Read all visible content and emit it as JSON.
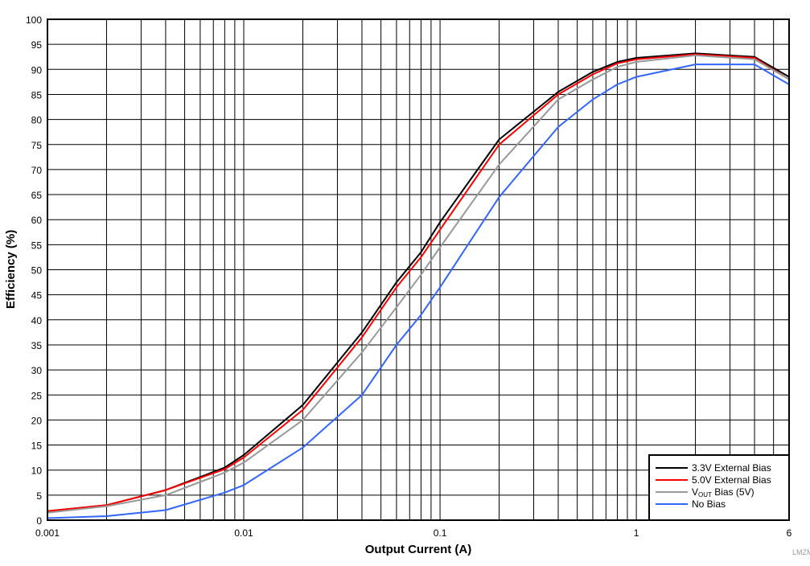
{
  "chart_data": {
    "type": "line",
    "title": "",
    "xlabel": "Output Current (A)",
    "ylabel": "Efficiency (%)",
    "xscale": "log",
    "xlim": [
      0.001,
      6
    ],
    "ylim": [
      0,
      100
    ],
    "grid": true,
    "legend_position": "bottom-right",
    "x_ticks": [
      {
        "value": 0.001,
        "label": "0.001"
      },
      {
        "value": 0.01,
        "label": "0.01"
      },
      {
        "value": 0.1,
        "label": "0.1"
      },
      {
        "value": 1,
        "label": "1"
      },
      {
        "value": 6,
        "label": "6"
      }
    ],
    "y_ticks": [
      0,
      5,
      10,
      15,
      20,
      25,
      30,
      35,
      40,
      45,
      50,
      55,
      60,
      65,
      70,
      75,
      80,
      85,
      90,
      95,
      100
    ],
    "x": [
      0.001,
      0.002,
      0.004,
      0.008,
      0.01,
      0.02,
      0.04,
      0.06,
      0.08,
      0.1,
      0.2,
      0.4,
      0.6,
      0.8,
      1,
      2,
      4,
      6
    ],
    "series": [
      {
        "name": "3.3V External Bias",
        "color": "#000000",
        "values": [
          1.8,
          3,
          6,
          10.5,
          13,
          23,
          37.5,
          47.5,
          53.5,
          59.5,
          76,
          85.5,
          89.5,
          91.5,
          92.3,
          93.2,
          92.5,
          88.5
        ]
      },
      {
        "name": "5.0V External Bias",
        "color": "#ff0000",
        "values": [
          1.8,
          3,
          6,
          10.2,
          12.5,
          22,
          36.5,
          46.5,
          52.5,
          58,
          75,
          85,
          89,
          91.2,
          92,
          93,
          92.3,
          88
        ]
      },
      {
        "name": "VOUT Bias (5V)",
        "name_main": "V",
        "name_sub": "OUT",
        "name_rest": " Bias (5V)",
        "color": "#999999",
        "values": [
          1.5,
          2.8,
          5,
          9.5,
          11.5,
          20,
          33.5,
          42.5,
          49,
          54.5,
          71,
          84,
          88,
          90.5,
          91.5,
          92.8,
          92,
          88
        ]
      },
      {
        "name": "No Bias",
        "color": "#3366ff",
        "values": [
          0.4,
          0.8,
          2,
          5.5,
          7,
          14.5,
          25,
          35,
          41,
          46.5,
          64.5,
          78.5,
          84,
          87,
          88.5,
          91,
          91,
          87
        ]
      }
    ]
  },
  "watermark": "LMZM"
}
